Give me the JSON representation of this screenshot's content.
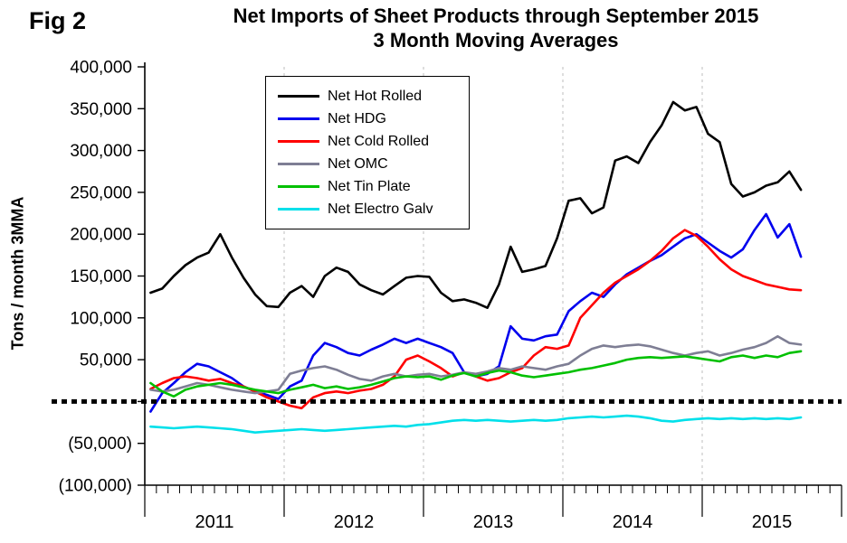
{
  "figure": {
    "fig_label": "Fig 2",
    "title_line1": "Net Imports of Sheet Products through September 2015",
    "title_line2": "3 Month Moving Averages",
    "y_axis_title": "Tons / month 3MMA"
  },
  "chart_data": {
    "type": "line",
    "title": "Net Imports of Sheet Products through September 2015",
    "subtitle": "3 Month Moving Averages",
    "ylabel": "Tons / month 3MMA",
    "ylim": [
      -100000,
      400000
    ],
    "grid": "vertical-dashed-at-year-boundaries",
    "legend_position": "inside-top-left",
    "zero_line": {
      "style": "thick-dotted",
      "color": "#000000"
    },
    "y_ticks": [
      {
        "value": 400000,
        "label": "400,000"
      },
      {
        "value": 350000,
        "label": "350,000"
      },
      {
        "value": 300000,
        "label": "300,000"
      },
      {
        "value": 250000,
        "label": "250,000"
      },
      {
        "value": 200000,
        "label": "200,000"
      },
      {
        "value": 150000,
        "label": "150,000"
      },
      {
        "value": 100000,
        "label": "100,000"
      },
      {
        "value": 50000,
        "label": "50,000"
      },
      {
        "value": 0,
        "label": ""
      },
      {
        "value": -50000,
        "label": "(50,000)"
      },
      {
        "value": -100000,
        "label": "(100,000)"
      }
    ],
    "x_axis": {
      "unit": "month",
      "total_month_slots": 60,
      "months_per_year": 12,
      "year_groups": [
        "2011",
        "2012",
        "2013",
        "2014",
        "2015"
      ],
      "data_start": "first month of 2011",
      "data_points": 57
    },
    "series": [
      {
        "name": "Net Hot Rolled",
        "color": "#000000",
        "values": [
          130000,
          135000,
          150000,
          163000,
          172000,
          178000,
          200000,
          172000,
          148000,
          128000,
          114000,
          113000,
          130000,
          138000,
          125000,
          150000,
          160000,
          155000,
          140000,
          133000,
          128000,
          138000,
          148000,
          150000,
          149000,
          130000,
          120000,
          122000,
          118000,
          112000,
          140000,
          185000,
          155000,
          158000,
          162000,
          195000,
          240000,
          243000,
          225000,
          232000,
          288000,
          293000,
          285000,
          310000,
          330000,
          358000,
          348000,
          352000,
          320000,
          310000,
          260000,
          245000,
          250000,
          258000,
          262000,
          275000,
          253000
        ]
      },
      {
        "name": "Net HDG",
        "color": "#0000ee",
        "values": [
          -12000,
          10000,
          22000,
          35000,
          45000,
          42000,
          35000,
          28000,
          18000,
          12000,
          8000,
          3000,
          18000,
          25000,
          55000,
          70000,
          65000,
          58000,
          55000,
          62000,
          68000,
          75000,
          70000,
          75000,
          70000,
          65000,
          58000,
          35000,
          30000,
          33000,
          42000,
          90000,
          75000,
          73000,
          78000,
          80000,
          108000,
          120000,
          130000,
          125000,
          140000,
          152000,
          160000,
          168000,
          175000,
          185000,
          195000,
          200000,
          190000,
          180000,
          172000,
          182000,
          205000,
          224000,
          196000,
          212000,
          173000
        ]
      },
      {
        "name": "Net Cold Rolled",
        "color": "#ff0000",
        "values": [
          15000,
          22000,
          28000,
          30000,
          28000,
          25000,
          27000,
          22000,
          18000,
          12000,
          5000,
          0,
          -5000,
          -8000,
          5000,
          10000,
          12000,
          10000,
          13000,
          15000,
          20000,
          30000,
          50000,
          55000,
          48000,
          40000,
          30000,
          35000,
          30000,
          25000,
          28000,
          35000,
          40000,
          55000,
          65000,
          63000,
          67000,
          100000,
          115000,
          130000,
          142000,
          150000,
          158000,
          168000,
          180000,
          195000,
          205000,
          198000,
          185000,
          170000,
          158000,
          150000,
          145000,
          140000,
          137000,
          134000,
          133000
        ]
      },
      {
        "name": "Net OMC",
        "color": "#7e7e94",
        "values": [
          14000,
          12000,
          14000,
          18000,
          22000,
          20000,
          17000,
          14000,
          12000,
          10000,
          12000,
          14000,
          33000,
          37000,
          40000,
          42000,
          38000,
          32000,
          27000,
          25000,
          30000,
          33000,
          30000,
          32000,
          33000,
          30000,
          32000,
          35000,
          33000,
          36000,
          40000,
          38000,
          42000,
          40000,
          38000,
          42000,
          45000,
          55000,
          63000,
          67000,
          65000,
          67000,
          68000,
          66000,
          62000,
          58000,
          55000,
          58000,
          60000,
          55000,
          58000,
          62000,
          65000,
          70000,
          78000,
          70000,
          68000
        ]
      },
      {
        "name": "Net Tin Plate",
        "color": "#00c000",
        "values": [
          22000,
          12000,
          6000,
          14000,
          18000,
          20000,
          22000,
          20000,
          17000,
          14000,
          12000,
          10000,
          14000,
          17000,
          20000,
          16000,
          18000,
          15000,
          17000,
          20000,
          24000,
          28000,
          30000,
          29000,
          30000,
          26000,
          31000,
          34000,
          30000,
          34000,
          37000,
          35000,
          31000,
          29000,
          31000,
          33000,
          35000,
          38000,
          40000,
          43000,
          46000,
          50000,
          52000,
          53000,
          52000,
          53000,
          54000,
          52000,
          50000,
          48000,
          53000,
          55000,
          52000,
          55000,
          53000,
          58000,
          60000
        ]
      },
      {
        "name": "Net Electro Galv",
        "color": "#00e0ea",
        "values": [
          -30000,
          -31000,
          -32000,
          -31000,
          -30000,
          -31000,
          -32000,
          -33000,
          -35000,
          -37000,
          -36000,
          -35000,
          -34000,
          -33000,
          -34000,
          -35000,
          -34000,
          -33000,
          -32000,
          -31000,
          -30000,
          -29000,
          -30000,
          -28000,
          -27000,
          -25000,
          -23000,
          -22000,
          -23000,
          -22000,
          -23000,
          -24000,
          -23000,
          -22000,
          -23000,
          -22000,
          -20000,
          -19000,
          -18000,
          -19000,
          -18000,
          -17000,
          -18000,
          -20000,
          -23000,
          -24000,
          -22000,
          -21000,
          -20000,
          -21000,
          -20000,
          -21000,
          -20000,
          -21000,
          -20000,
          -21000,
          -19000
        ]
      }
    ]
  }
}
